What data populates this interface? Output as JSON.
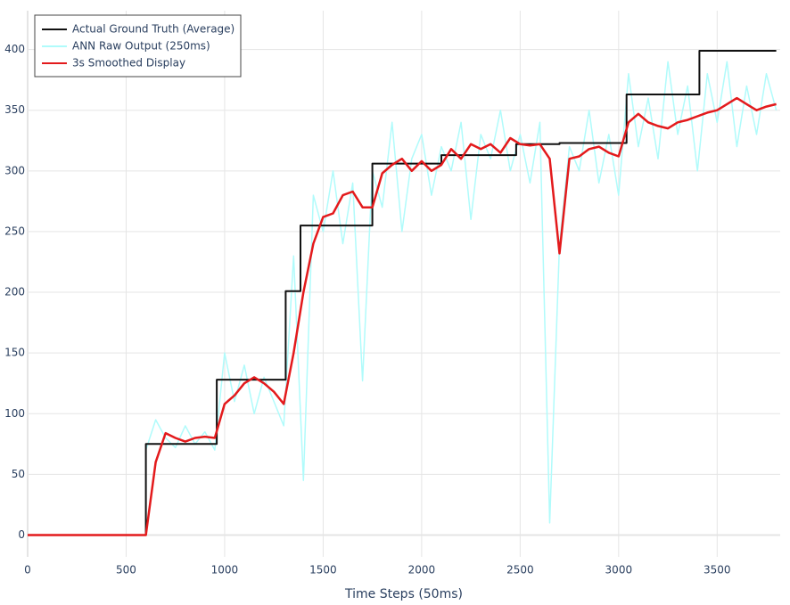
{
  "chart_data": {
    "type": "line",
    "x_label": "Time Steps (50ms)",
    "xlim": [
      0,
      3820
    ],
    "xticks": [
      0,
      500,
      1000,
      1500,
      2000,
      2500,
      3000,
      3500
    ],
    "ylim": [
      -18,
      432
    ],
    "yticks": [
      0,
      50,
      100,
      150,
      200,
      250,
      300,
      350,
      400
    ],
    "grid": true,
    "legend": "upper left",
    "series": [
      {
        "name": "ANN Raw Output (250ms)",
        "color": "#b0fbfb",
        "x": [
          600,
          650,
          700,
          750,
          800,
          850,
          900,
          950,
          1000,
          1050,
          1100,
          1150,
          1200,
          1250,
          1300,
          1350,
          1400,
          1450,
          1500,
          1550,
          1600,
          1650,
          1700,
          1750,
          1800,
          1850,
          1900,
          1950,
          2000,
          2050,
          2100,
          2150,
          2200,
          2250,
          2300,
          2350,
          2400,
          2450,
          2500,
          2550,
          2600,
          2650,
          2700,
          2750,
          2800,
          2850,
          2900,
          2950,
          3000,
          3050,
          3100,
          3150,
          3200,
          3250,
          3300,
          3350,
          3400,
          3450,
          3500,
          3550,
          3600,
          3650,
          3700,
          3750,
          3800
        ],
        "values": [
          70,
          95,
          80,
          72,
          90,
          75,
          85,
          70,
          150,
          110,
          140,
          100,
          130,
          110,
          90,
          230,
          45,
          280,
          250,
          300,
          240,
          290,
          127,
          300,
          270,
          340,
          250,
          310,
          330,
          280,
          320,
          300,
          340,
          260,
          330,
          310,
          350,
          300,
          330,
          290,
          340,
          10,
          240,
          320,
          300,
          350,
          290,
          330,
          280,
          380,
          320,
          360,
          310,
          390,
          330,
          370,
          300,
          380,
          340,
          390,
          320,
          370,
          330,
          380,
          350
        ]
      },
      {
        "name": "Actual Ground Truth (Average)",
        "color": "#111111",
        "x": [
          0,
          600,
          600,
          960,
          960,
          1310,
          1310,
          1385,
          1385,
          1750,
          1750,
          2100,
          2100,
          2480,
          2480,
          2700,
          2700,
          3040,
          3040,
          3410,
          3410,
          3800
        ],
        "values": [
          0,
          0,
          75,
          75,
          128,
          128,
          201,
          201,
          255,
          255,
          306,
          306,
          313,
          313,
          322,
          322,
          323,
          323,
          363,
          363,
          399,
          399
        ]
      },
      {
        "name": "3s Smoothed Display",
        "color": "#e31a1c",
        "x": [
          0,
          50,
          100,
          150,
          200,
          250,
          300,
          350,
          400,
          450,
          500,
          550,
          600,
          650,
          700,
          750,
          800,
          850,
          900,
          950,
          1000,
          1050,
          1100,
          1150,
          1200,
          1250,
          1300,
          1350,
          1400,
          1450,
          1500,
          1550,
          1600,
          1650,
          1700,
          1750,
          1800,
          1850,
          1900,
          1950,
          2000,
          2050,
          2100,
          2150,
          2200,
          2250,
          2300,
          2350,
          2400,
          2450,
          2500,
          2550,
          2600,
          2650,
          2700,
          2750,
          2800,
          2850,
          2900,
          2950,
          3000,
          3050,
          3100,
          3150,
          3200,
          3250,
          3300,
          3350,
          3400,
          3450,
          3500,
          3550,
          3600,
          3650,
          3700,
          3750,
          3800
        ],
        "values": [
          0,
          0,
          0,
          0,
          0,
          0,
          0,
          0,
          0,
          0,
          0,
          0,
          0,
          60,
          84,
          80,
          77,
          80,
          81,
          80,
          108,
          115,
          125,
          130,
          125,
          118,
          108,
          150,
          200,
          240,
          262,
          265,
          280,
          283,
          270,
          270,
          298,
          305,
          310,
          300,
          308,
          300,
          305,
          318,
          310,
          322,
          318,
          322,
          315,
          327,
          322,
          321,
          322,
          310,
          232,
          310,
          312,
          318,
          320,
          315,
          312,
          340,
          347,
          340,
          337,
          335,
          340,
          342,
          345,
          348,
          350,
          355,
          360,
          355,
          350,
          353,
          355
        ]
      }
    ]
  }
}
